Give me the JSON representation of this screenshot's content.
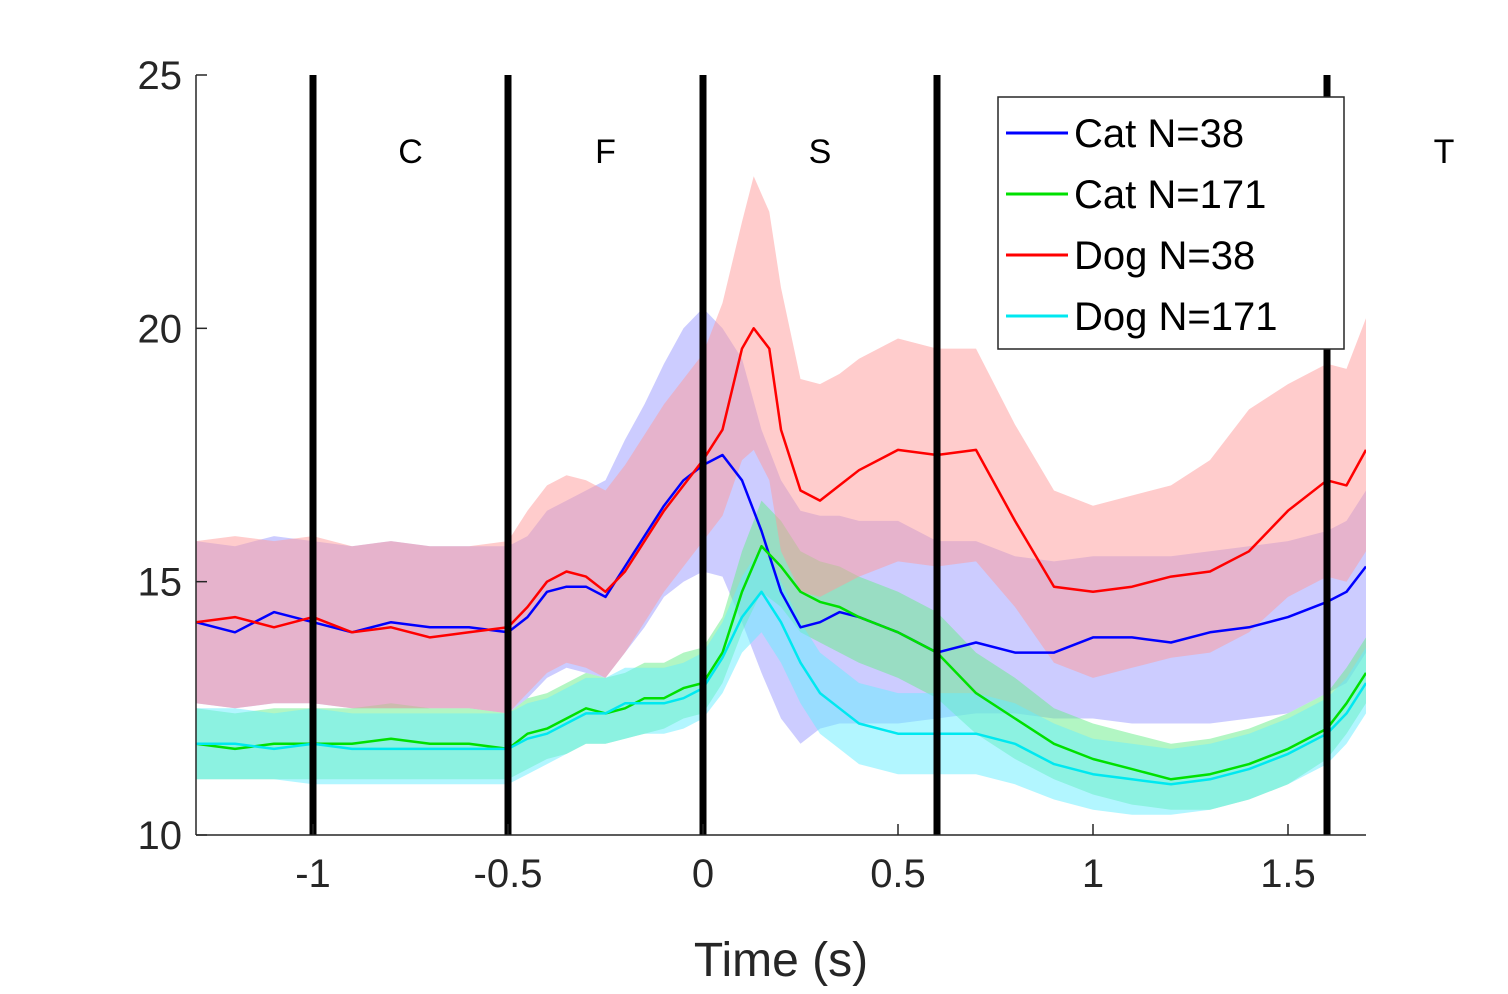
{
  "chart_data": {
    "type": "line",
    "title": "",
    "xlabel": "Time (s)",
    "ylabel": "",
    "xlim": [
      -1.3,
      1.7
    ],
    "ylim": [
      10,
      25
    ],
    "x_ticks": [
      -1,
      -0.5,
      0,
      0.5,
      1,
      1.5
    ],
    "x_tick_labels": [
      "-1",
      "-0.5",
      "0",
      "0.5",
      "1",
      "1.5"
    ],
    "y_ticks": [
      10,
      15,
      20,
      25
    ],
    "y_tick_labels": [
      "10",
      "15",
      "20",
      "25"
    ],
    "grid": false,
    "legend_position": "top-right",
    "event_lines": [
      -1,
      -0.5,
      0,
      0.6,
      1.6
    ],
    "phase_labels": [
      {
        "text": "C",
        "x": -0.75,
        "y": 23.5
      },
      {
        "text": "F",
        "x": -0.25,
        "y": 23.5
      },
      {
        "text": "S",
        "x": 0.3,
        "y": 23.5
      },
      {
        "text": "T",
        "x": 1.9,
        "y": 23.5
      }
    ],
    "series": [
      {
        "name": "Cat N=38",
        "color": "#0000ff",
        "band_color": "#9999ff",
        "x": [
          -1.3,
          -1.2,
          -1.1,
          -1.0,
          -0.9,
          -0.8,
          -0.7,
          -0.6,
          -0.5,
          -0.45,
          -0.4,
          -0.35,
          -0.3,
          -0.25,
          -0.2,
          -0.15,
          -0.1,
          -0.05,
          0.0,
          0.05,
          0.1,
          0.15,
          0.2,
          0.25,
          0.3,
          0.35,
          0.4,
          0.5,
          0.6,
          0.7,
          0.8,
          0.9,
          1.0,
          1.1,
          1.2,
          1.3,
          1.4,
          1.5,
          1.6,
          1.65,
          1.7
        ],
        "values": [
          14.2,
          14.0,
          14.4,
          14.2,
          14.0,
          14.2,
          14.1,
          14.1,
          14.0,
          14.3,
          14.8,
          14.9,
          14.9,
          14.7,
          15.3,
          15.9,
          16.5,
          17.0,
          17.3,
          17.5,
          17.0,
          16.0,
          14.8,
          14.1,
          14.2,
          14.4,
          14.3,
          14.0,
          13.6,
          13.8,
          13.6,
          13.6,
          13.9,
          13.9,
          13.8,
          14.0,
          14.1,
          14.3,
          14.6,
          14.8,
          15.3
        ],
        "lower": [
          12.6,
          12.5,
          12.6,
          12.6,
          12.5,
          12.5,
          12.5,
          12.5,
          12.4,
          12.7,
          13.1,
          13.3,
          13.2,
          13.1,
          13.6,
          14.1,
          14.7,
          15.0,
          15.2,
          15.1,
          14.2,
          13.2,
          12.3,
          11.8,
          12.1,
          12.2,
          12.2,
          12.2,
          12.3,
          12.4,
          12.4,
          12.3,
          12.3,
          12.2,
          12.2,
          12.2,
          12.3,
          12.4,
          12.8,
          13.0,
          13.6
        ],
        "upper": [
          15.8,
          15.7,
          15.9,
          15.8,
          15.7,
          15.8,
          15.7,
          15.7,
          15.7,
          15.9,
          16.4,
          16.6,
          16.8,
          17.0,
          17.8,
          18.5,
          19.3,
          20.0,
          20.4,
          20.0,
          19.4,
          18.0,
          17.0,
          16.4,
          16.3,
          16.3,
          16.2,
          16.2,
          15.8,
          15.8,
          15.5,
          15.4,
          15.5,
          15.5,
          15.5,
          15.6,
          15.7,
          15.8,
          16.0,
          16.2,
          16.8
        ]
      },
      {
        "name": "Cat N=171",
        "color": "#00e000",
        "band_color": "#66ee88",
        "x": [
          -1.3,
          -1.2,
          -1.1,
          -1.0,
          -0.9,
          -0.8,
          -0.7,
          -0.6,
          -0.5,
          -0.45,
          -0.4,
          -0.35,
          -0.3,
          -0.25,
          -0.2,
          -0.15,
          -0.1,
          -0.05,
          0.0,
          0.05,
          0.1,
          0.15,
          0.2,
          0.25,
          0.3,
          0.35,
          0.4,
          0.5,
          0.6,
          0.7,
          0.8,
          0.9,
          1.0,
          1.1,
          1.2,
          1.3,
          1.4,
          1.5,
          1.6,
          1.65,
          1.7
        ],
        "values": [
          11.8,
          11.7,
          11.8,
          11.8,
          11.8,
          11.9,
          11.8,
          11.8,
          11.7,
          12.0,
          12.1,
          12.3,
          12.5,
          12.4,
          12.5,
          12.7,
          12.7,
          12.9,
          13.0,
          13.6,
          14.8,
          15.7,
          15.3,
          14.8,
          14.6,
          14.5,
          14.3,
          14.0,
          13.6,
          12.8,
          12.3,
          11.8,
          11.5,
          11.3,
          11.1,
          11.2,
          11.4,
          11.7,
          12.1,
          12.6,
          13.2
        ],
        "lower": [
          11.1,
          11.1,
          11.1,
          11.1,
          11.1,
          11.1,
          11.1,
          11.1,
          11.1,
          11.3,
          11.5,
          11.6,
          11.8,
          11.8,
          11.9,
          12.0,
          12.1,
          12.3,
          12.4,
          13.0,
          14.0,
          14.8,
          14.5,
          14.0,
          13.8,
          13.6,
          13.4,
          13.1,
          12.7,
          12.0,
          11.5,
          11.1,
          10.8,
          10.6,
          10.5,
          10.5,
          10.7,
          11.0,
          11.5,
          12.0,
          12.6
        ],
        "upper": [
          12.5,
          12.4,
          12.5,
          12.5,
          12.5,
          12.6,
          12.5,
          12.5,
          12.4,
          12.7,
          12.8,
          13.0,
          13.2,
          13.1,
          13.2,
          13.4,
          13.4,
          13.6,
          13.7,
          14.3,
          15.6,
          16.6,
          16.2,
          15.6,
          15.4,
          15.3,
          15.1,
          14.8,
          14.4,
          13.6,
          13.1,
          12.5,
          12.2,
          12.0,
          11.8,
          11.9,
          12.1,
          12.4,
          12.8,
          13.3,
          13.9
        ]
      },
      {
        "name": "Dog N=38",
        "color": "#ff0000",
        "band_color": "#ff9999",
        "x": [
          -1.3,
          -1.2,
          -1.1,
          -1.0,
          -0.9,
          -0.8,
          -0.7,
          -0.6,
          -0.5,
          -0.45,
          -0.4,
          -0.35,
          -0.3,
          -0.25,
          -0.2,
          -0.15,
          -0.1,
          -0.05,
          0.0,
          0.05,
          0.1,
          0.13,
          0.17,
          0.2,
          0.25,
          0.3,
          0.35,
          0.4,
          0.5,
          0.6,
          0.7,
          0.8,
          0.9,
          1.0,
          1.1,
          1.2,
          1.3,
          1.4,
          1.5,
          1.6,
          1.65,
          1.7
        ],
        "values": [
          14.2,
          14.3,
          14.1,
          14.3,
          14.0,
          14.1,
          13.9,
          14.0,
          14.1,
          14.5,
          15.0,
          15.2,
          15.1,
          14.8,
          15.2,
          15.8,
          16.4,
          16.9,
          17.4,
          18.0,
          19.6,
          20.0,
          19.6,
          18.0,
          16.8,
          16.6,
          16.9,
          17.2,
          17.6,
          17.5,
          17.6,
          16.2,
          14.9,
          14.8,
          14.9,
          15.1,
          15.2,
          15.6,
          16.4,
          17.0,
          16.9,
          17.6
        ],
        "lower": [
          12.6,
          12.5,
          12.6,
          12.6,
          12.5,
          12.5,
          12.5,
          12.5,
          12.4,
          12.8,
          13.2,
          13.4,
          13.3,
          13.1,
          13.6,
          14.2,
          14.8,
          15.3,
          15.8,
          16.3,
          17.4,
          17.6,
          17.0,
          15.6,
          14.8,
          14.7,
          14.9,
          15.1,
          15.4,
          15.3,
          15.4,
          14.5,
          13.4,
          13.1,
          13.3,
          13.5,
          13.6,
          14.0,
          14.7,
          15.1,
          15.0,
          15.6
        ],
        "upper": [
          15.8,
          15.9,
          15.8,
          15.9,
          15.7,
          15.8,
          15.7,
          15.7,
          15.8,
          16.4,
          16.9,
          17.1,
          17.0,
          16.8,
          17.3,
          17.9,
          18.5,
          19.0,
          19.5,
          20.5,
          22.1,
          23.0,
          22.3,
          20.8,
          19.0,
          18.9,
          19.1,
          19.4,
          19.8,
          19.6,
          19.6,
          18.1,
          16.8,
          16.5,
          16.7,
          16.9,
          17.4,
          18.4,
          18.9,
          19.3,
          19.2,
          20.2
        ]
      },
      {
        "name": "Dog N=171",
        "color": "#00e8f0",
        "band_color": "#66eeff",
        "x": [
          -1.3,
          -1.2,
          -1.1,
          -1.0,
          -0.9,
          -0.8,
          -0.7,
          -0.6,
          -0.5,
          -0.45,
          -0.4,
          -0.35,
          -0.3,
          -0.25,
          -0.2,
          -0.15,
          -0.1,
          -0.05,
          0.0,
          0.05,
          0.1,
          0.15,
          0.2,
          0.25,
          0.3,
          0.35,
          0.4,
          0.5,
          0.6,
          0.7,
          0.8,
          0.9,
          1.0,
          1.1,
          1.2,
          1.3,
          1.4,
          1.5,
          1.6,
          1.65,
          1.7
        ],
        "values": [
          11.8,
          11.8,
          11.7,
          11.8,
          11.7,
          11.7,
          11.7,
          11.7,
          11.7,
          11.9,
          12.0,
          12.2,
          12.4,
          12.4,
          12.6,
          12.6,
          12.6,
          12.7,
          12.9,
          13.5,
          14.3,
          14.8,
          14.2,
          13.4,
          12.8,
          12.5,
          12.2,
          12.0,
          12.0,
          12.0,
          11.8,
          11.4,
          11.2,
          11.1,
          11.0,
          11.1,
          11.3,
          11.6,
          12.0,
          12.4,
          13.0
        ],
        "lower": [
          11.1,
          11.1,
          11.1,
          11.0,
          11.0,
          11.0,
          11.0,
          11.0,
          11.0,
          11.2,
          11.4,
          11.6,
          11.8,
          11.8,
          11.9,
          12.0,
          12.0,
          12.1,
          12.3,
          12.8,
          13.6,
          14.0,
          13.4,
          12.6,
          12.0,
          11.7,
          11.4,
          11.2,
          11.2,
          11.2,
          11.0,
          10.7,
          10.5,
          10.4,
          10.4,
          10.5,
          10.7,
          11.0,
          11.4,
          11.8,
          12.4
        ],
        "upper": [
          12.5,
          12.5,
          12.4,
          12.5,
          12.4,
          12.4,
          12.4,
          12.4,
          12.4,
          12.6,
          12.7,
          12.9,
          13.1,
          13.1,
          13.3,
          13.3,
          13.3,
          13.4,
          13.6,
          14.2,
          15.1,
          15.7,
          15.0,
          14.2,
          13.6,
          13.3,
          13.0,
          12.8,
          12.8,
          12.8,
          12.6,
          12.2,
          11.9,
          11.8,
          11.7,
          11.8,
          12.0,
          12.3,
          12.7,
          13.1,
          13.7
        ]
      }
    ]
  }
}
